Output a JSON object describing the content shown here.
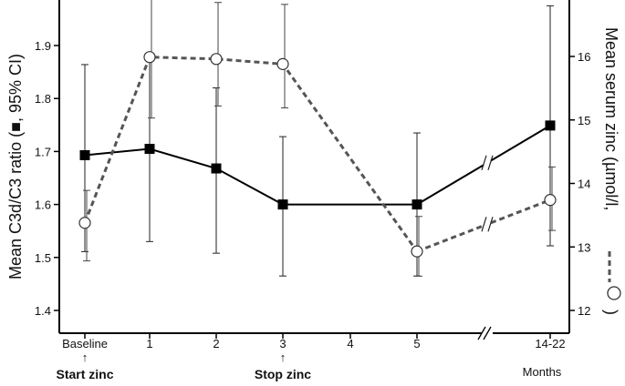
{
  "chart_data": {
    "type": "line",
    "title": "",
    "xlabel": "Months",
    "categories": [
      "Baseline",
      "1",
      "2",
      "3",
      "4",
      "5",
      "14-22"
    ],
    "x": [
      0,
      1,
      2,
      3,
      4,
      5,
      7
    ],
    "x_ticks": [
      {
        "x": 0,
        "label": "Baseline"
      },
      {
        "x": 1,
        "label": "1"
      },
      {
        "x": 2,
        "label": "2"
      },
      {
        "x": 3,
        "label": "3"
      },
      {
        "x": 4,
        "label": "4"
      },
      {
        "x": 5,
        "label": "5"
      },
      {
        "x": 7,
        "label": "14-22"
      }
    ],
    "axis_break_between": [
      5,
      7
    ],
    "left_axis": {
      "label_prefix": "Mean C3d/C3 ratio (",
      "label_suffix": ", 95% CI)",
      "label_marker": "■",
      "ylim": [
        1.35,
        2.0
      ],
      "ticks": [
        1.4,
        1.5,
        1.6,
        1.7,
        1.8,
        1.9
      ]
    },
    "right_axis": {
      "label_prefix": "Mean serum zinc (µmol/l,",
      "label_suffix": ")",
      "ylim": [
        11.75,
        16.6
      ],
      "ticks": [
        12,
        13,
        14,
        15,
        16
      ]
    },
    "series": [
      {
        "name": "C3d/C3 ratio",
        "axis": "left",
        "marker": "square-filled",
        "line": "solid",
        "color": "#000000",
        "x": [
          0,
          1,
          2,
          3,
          5,
          7
        ],
        "values": [
          1.693,
          1.705,
          1.668,
          1.6,
          1.6,
          1.749
        ],
        "ci_low": [
          1.511,
          1.53,
          1.508,
          1.465,
          1.465,
          1.522
        ],
        "ci_high": [
          1.864,
          1.88,
          1.82,
          1.728,
          1.735,
          1.975
        ]
      },
      {
        "name": "Serum zinc",
        "axis": "right",
        "marker": "circle-open",
        "line": "dashed",
        "color": "#555555",
        "x": [
          0,
          1,
          2,
          3,
          5,
          7
        ],
        "values": [
          13.38,
          15.99,
          15.96,
          15.88,
          12.93,
          13.74
        ],
        "ci_low": [
          12.78,
          15.03,
          15.22,
          15.19,
          12.54,
          13.26
        ],
        "ci_high": [
          13.89,
          16.9,
          16.85,
          16.82,
          13.48,
          14.26
        ]
      }
    ],
    "annotations": [
      {
        "text": "Start zinc",
        "x": 0,
        "arrow": "↑"
      },
      {
        "text": "Stop zinc",
        "x": 3,
        "arrow": "↑"
      }
    ]
  }
}
